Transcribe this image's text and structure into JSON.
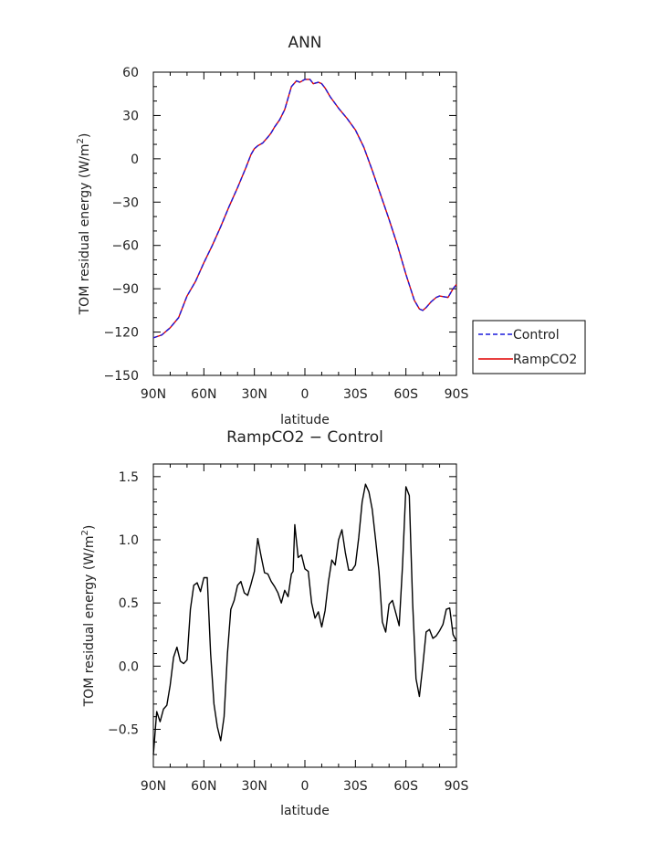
{
  "chart_data": [
    {
      "type": "line",
      "title": "ANN",
      "xlabel": "latitude",
      "ylabel": "TOM residual energy (W/m",
      "ylabel_sup": "2",
      "ylabel_end": ")",
      "xlim": [
        90,
        -90
      ],
      "ylim": [
        -150,
        60
      ],
      "yticks": [
        60,
        30,
        0,
        -30,
        -60,
        -90,
        -120,
        -150
      ],
      "yticklabels": [
        "60",
        "30",
        "0",
        "−30",
        "−60",
        "−90",
        "−120",
        "−150"
      ],
      "xticks": [
        90,
        60,
        30,
        0,
        -30,
        -60,
        -90
      ],
      "xticklabels": [
        "90N",
        "60N",
        "30N",
        "0",
        "30S",
        "60S",
        "90S"
      ],
      "grid": false,
      "legend_position": "right",
      "x": [
        90,
        85,
        80,
        75,
        70,
        65,
        60,
        55,
        50,
        45,
        40,
        35,
        32,
        30,
        28,
        25,
        22,
        20,
        18,
        15,
        12,
        10,
        8,
        5,
        3,
        0,
        -3,
        -5,
        -8,
        -10,
        -12,
        -15,
        -20,
        -25,
        -30,
        -35,
        -40,
        -45,
        -50,
        -55,
        -60,
        -65,
        -68,
        -70,
        -72,
        -75,
        -78,
        -80,
        -85,
        -88,
        -90
      ],
      "series": [
        {
          "name": "Control",
          "color": "#1a1adc",
          "style": "dashed",
          "values": [
            -124,
            -122,
            -117,
            -110,
            -95,
            -85,
            -72,
            -60,
            -47,
            -33,
            -20,
            -6,
            3,
            7,
            9,
            11,
            15,
            18,
            22,
            27,
            34,
            42,
            50,
            54,
            53,
            55,
            55,
            52,
            53,
            52,
            49,
            43,
            35,
            28,
            20,
            8,
            -8,
            -25,
            -42,
            -60,
            -80,
            -98,
            -104,
            -105,
            -103,
            -99,
            -96,
            -95,
            -96,
            -90,
            -87
          ]
        },
        {
          "name": "RampCO2",
          "color": "#e00000",
          "style": "solid",
          "values": [
            -124,
            -122,
            -117,
            -110,
            -95,
            -85,
            -72,
            -60,
            -47,
            -33,
            -20,
            -6,
            3,
            7,
            9,
            11,
            15,
            18,
            22,
            27,
            34,
            42,
            50,
            54,
            53,
            55,
            55,
            52,
            53,
            52,
            49,
            43,
            35,
            28,
            20,
            8,
            -8,
            -25,
            -42,
            -60,
            -80,
            -98,
            -104,
            -105,
            -103,
            -99,
            -96,
            -95,
            -96,
            -90,
            -87
          ]
        }
      ]
    },
    {
      "type": "line",
      "title": "RampCO2 − Control",
      "xlabel": "latitude",
      "ylabel": "TOM residual energy (W/m",
      "ylabel_sup": "2",
      "ylabel_end": ")",
      "xlim": [
        90,
        -90
      ],
      "ylim": [
        -0.8,
        1.6
      ],
      "yticks": [
        1.5,
        1.0,
        0.5,
        0.0,
        -0.5
      ],
      "yticklabels": [
        "1.5",
        "1.0",
        "0.5",
        "0.0",
        "−0.5"
      ],
      "xticks": [
        90,
        60,
        30,
        0,
        -30,
        -60,
        -90
      ],
      "xticklabels": [
        "90N",
        "60N",
        "30N",
        "0",
        "30S",
        "60S",
        "90S"
      ],
      "grid": false,
      "x": [
        90,
        88,
        86,
        84,
        82,
        80,
        78,
        76,
        74,
        72,
        70,
        68,
        66,
        64,
        62,
        60,
        58,
        56,
        54,
        52,
        50,
        48,
        46,
        44,
        42,
        40,
        38,
        36,
        34,
        32,
        30,
        28,
        26,
        24,
        22,
        20,
        18,
        16,
        14,
        12,
        10,
        8,
        7,
        6,
        4,
        2,
        0,
        -2,
        -4,
        -6,
        -8,
        -10,
        -12,
        -14,
        -16,
        -18,
        -20,
        -22,
        -24,
        -26,
        -28,
        -30,
        -32,
        -34,
        -36,
        -38,
        -40,
        -42,
        -44,
        -46,
        -48,
        -50,
        -52,
        -54,
        -56,
        -58,
        -60,
        -62,
        -64,
        -66,
        -68,
        -70,
        -72,
        -74,
        -76,
        -78,
        -80,
        -82,
        -84,
        -86,
        -88,
        -90
      ],
      "series": [
        {
          "name": "",
          "color": "#000000",
          "style": "solid",
          "values": [
            -0.7,
            -0.36,
            -0.44,
            -0.34,
            -0.31,
            -0.15,
            0.07,
            0.15,
            0.04,
            0.02,
            0.05,
            0.45,
            0.64,
            0.66,
            0.59,
            0.7,
            0.7,
            0.1,
            -0.3,
            -0.48,
            -0.59,
            -0.4,
            0.1,
            0.45,
            0.52,
            0.64,
            0.67,
            0.58,
            0.56,
            0.65,
            0.75,
            1.01,
            0.87,
            0.74,
            0.73,
            0.67,
            0.63,
            0.58,
            0.5,
            0.6,
            0.55,
            0.73,
            0.75,
            1.12,
            0.86,
            0.88,
            0.77,
            0.75,
            0.5,
            0.38,
            0.43,
            0.31,
            0.44,
            0.67,
            0.84,
            0.8,
            1.0,
            1.08,
            0.9,
            0.76,
            0.76,
            0.8,
            1.02,
            1.3,
            1.44,
            1.38,
            1.24,
            1.0,
            0.75,
            0.35,
            0.27,
            0.49,
            0.52,
            0.42,
            0.32,
            0.8,
            1.42,
            1.35,
            0.5,
            -0.1,
            -0.24,
            0.0,
            0.27,
            0.29,
            0.22,
            0.24,
            0.28,
            0.33,
            0.45,
            0.46,
            0.25,
            0.2
          ]
        }
      ]
    }
  ]
}
